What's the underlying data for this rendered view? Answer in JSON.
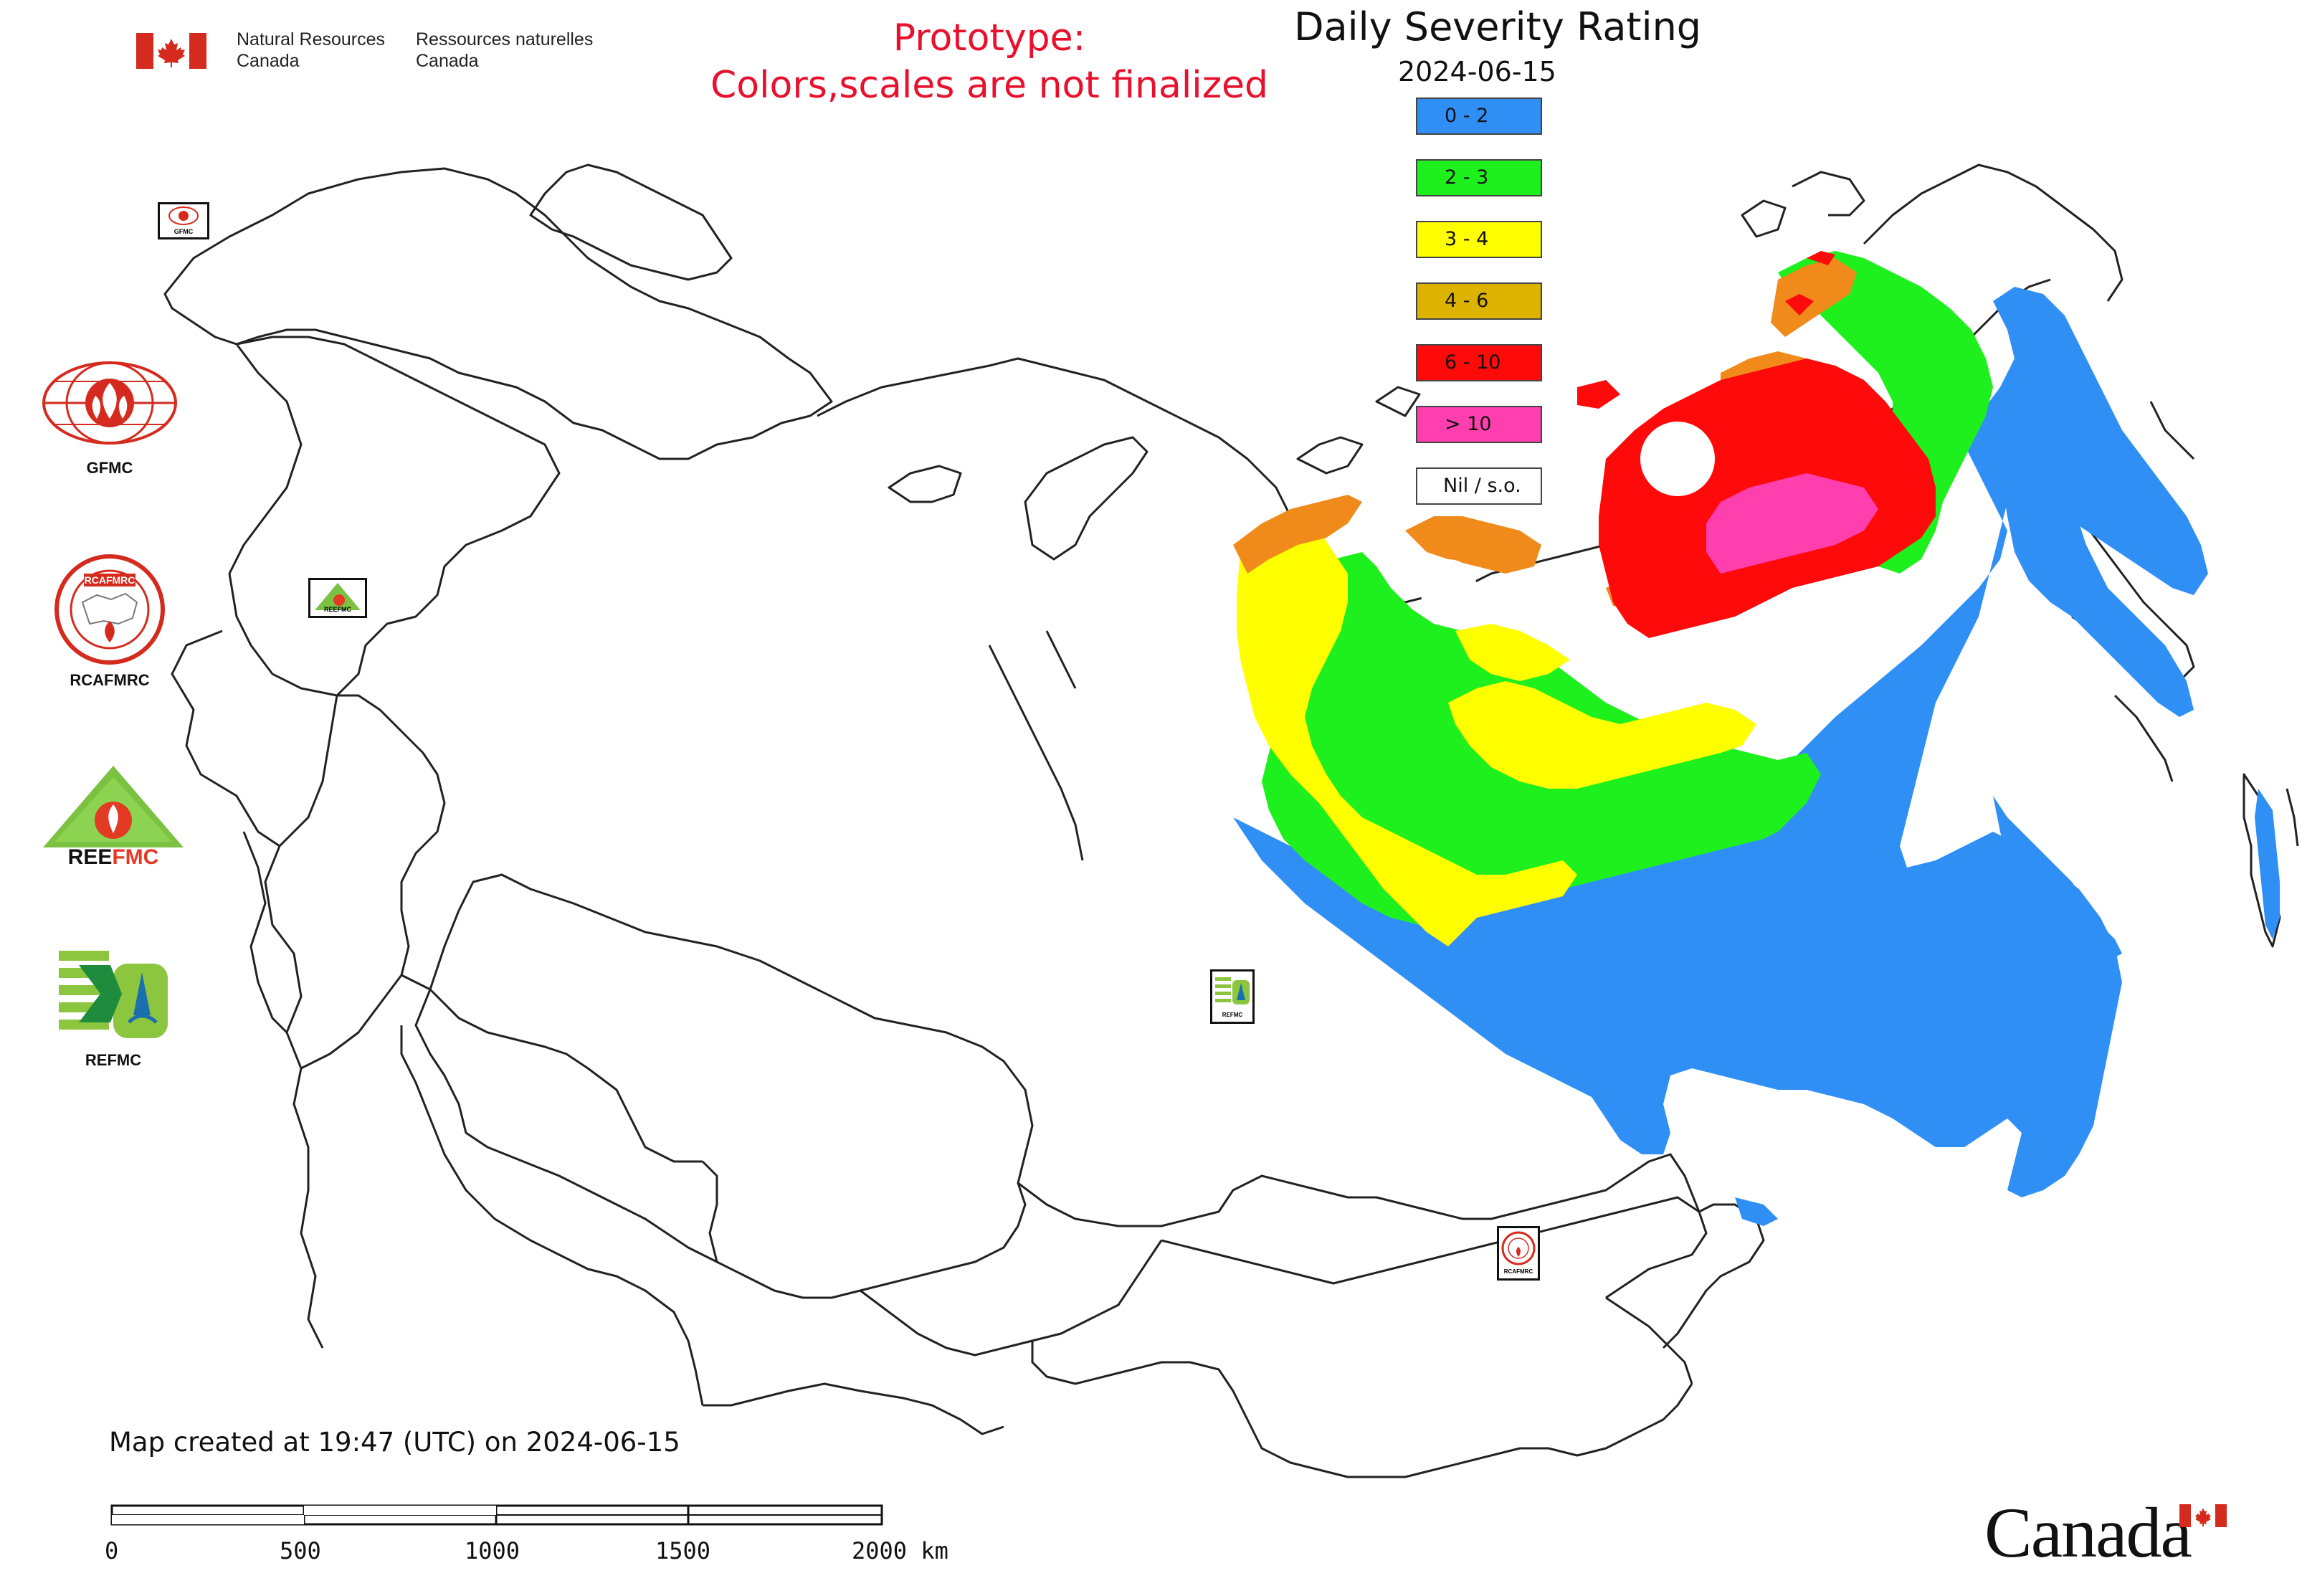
{
  "header": {
    "org_en": [
      "Natural Resources",
      "Canada"
    ],
    "org_fr": [
      "Ressources naturelles",
      "Canada"
    ],
    "notice_line1": "Prototype:",
    "notice_line2": "Colors,scales are not finalized"
  },
  "legend": {
    "title": "Daily Severity Rating",
    "date": "2024-06-15",
    "classes": [
      {
        "label": "0 - 2",
        "color": "#2f8ff5"
      },
      {
        "label": "2 - 3",
        "color": "#1ef01e"
      },
      {
        "label": "3 - 4",
        "color": "#ffff00"
      },
      {
        "label": "4 - 6",
        "color": "#deb300"
      },
      {
        "label": "6 - 10",
        "color": "#ff0a0a"
      },
      {
        "label": "> 10",
        "color": "#ff3fae"
      },
      {
        "label": "Nil / s.o.",
        "color": "#ffffff"
      }
    ]
  },
  "organizations": [
    {
      "name": "GFMC",
      "icon": "gfmc-logo"
    },
    {
      "name": "RCAFMRC",
      "icon": "rcafmrc-logo"
    },
    {
      "name": "REEFMC",
      "icon": "reefmc-logo"
    },
    {
      "name": "REFMC",
      "icon": "refmc-logo"
    }
  ],
  "map_badges": {
    "gfmc_small": "GFMC",
    "refmc_small": "REFMC",
    "rcafmrc_small": "RCAFMRC",
    "reefmc_small": "REEFMC"
  },
  "footer": {
    "created": "Map created at 19:47 (UTC) on 2024-06-15",
    "scale_ticks": [
      "0",
      "500",
      "1000",
      "1500",
      "2000 km"
    ],
    "canada_wordmark": "Canada"
  },
  "colors": {
    "notice": "#e8112d",
    "flag_red": "#d52b1e"
  }
}
